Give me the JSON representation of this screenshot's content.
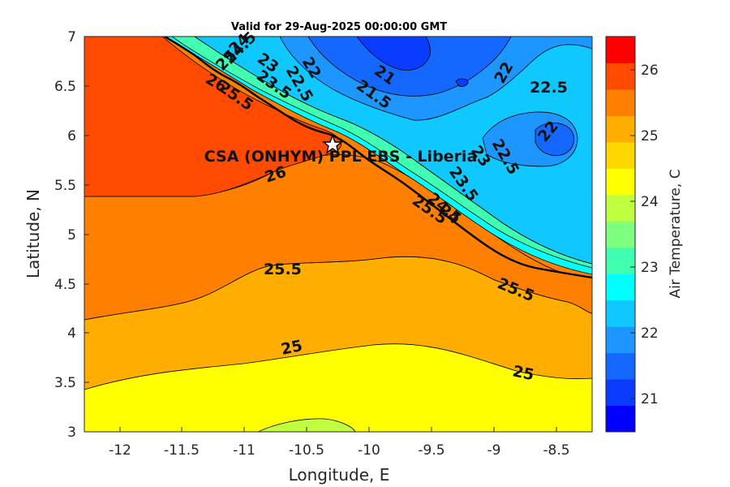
{
  "title": "Valid for 29-Aug-2025 00:00:00 GMT",
  "xlabel": "Longitude, E",
  "ylabel": "Latitude, N",
  "colorbar_label": "Air Temperature, C",
  "site_label": "CSA (ONHYM) PPL EBS  - Liberia",
  "x_ticks": [
    "-12",
    "-11.5",
    "-11",
    "-10.5",
    "-10",
    "-9.5",
    "-9",
    "-8.5"
  ],
  "y_ticks": [
    "7",
    "6.5",
    "6",
    "5.5",
    "5",
    "4.5",
    "4",
    "3.5",
    "3"
  ],
  "colorbar_ticks": [
    "26",
    "25",
    "24",
    "23",
    "22",
    "21"
  ],
  "colormap": [
    "#0000ff",
    "#0a3cff",
    "#1468ff",
    "#1e96ff",
    "#0fc8ff",
    "#00ffff",
    "#40ffb0",
    "#7dff80",
    "#c0ff40",
    "#ffff00",
    "#ffd700",
    "#ffae00",
    "#ff8000",
    "#ff4a00",
    "#ff0000"
  ],
  "chart_data": {
    "type": "heatmap",
    "subtype": "filled contour map",
    "variable": "Air Temperature, C",
    "xlim": [
      -12.3,
      -8.25
    ],
    "ylim": [
      3,
      7
    ],
    "clim": [
      20.5,
      26.5
    ],
    "contour_levels": [
      21,
      21.5,
      22,
      22.5,
      23,
      23.5,
      24,
      24.5,
      25,
      25.5,
      26
    ],
    "contour_labels": [
      {
        "text": "26",
        "lon": -11.35,
        "lat": 6.55
      },
      {
        "text": "26",
        "lon": -10.75,
        "lat": 5.6
      },
      {
        "text": "25.5",
        "lon": -10.68,
        "lat": 4.68
      },
      {
        "text": "25.5",
        "lon": -8.97,
        "lat": 4.5
      },
      {
        "text": "25",
        "lon": -10.35,
        "lat": 3.88
      },
      {
        "text": "25",
        "lon": -8.73,
        "lat": 3.62
      },
      {
        "text": "25.5",
        "lon": -11.1,
        "lat": 6.45
      },
      {
        "text": "25.5",
        "lon": -9.55,
        "lat": 5.2
      },
      {
        "text": "25",
        "lon": -11.15,
        "lat": 6.55
      },
      {
        "text": "24.5",
        "lon": -11.0,
        "lat": 6.65
      },
      {
        "text": "24.5",
        "lon": -9.4,
        "lat": 5.38
      },
      {
        "text": "24",
        "lon": -11.0,
        "lat": 6.72
      },
      {
        "text": "24",
        "lon": -9.35,
        "lat": 5.3
      },
      {
        "text": "23.5",
        "lon": -10.8,
        "lat": 6.58
      },
      {
        "text": "23.5",
        "lon": -9.25,
        "lat": 5.6
      },
      {
        "text": "23",
        "lon": -10.95,
        "lat": 6.75
      },
      {
        "text": "23",
        "lon": -9.25,
        "lat": 5.75
      },
      {
        "text": "22.5",
        "lon": -10.6,
        "lat": 6.7
      },
      {
        "text": "22.5",
        "lon": -9.05,
        "lat": 5.85
      },
      {
        "text": "22.5",
        "lon": -8.6,
        "lat": 6.5
      },
      {
        "text": "22",
        "lon": -10.45,
        "lat": 6.78
      },
      {
        "text": "22",
        "lon": -8.87,
        "lat": 6.6
      },
      {
        "text": "22",
        "lon": -8.62,
        "lat": 6.05
      },
      {
        "text": "21.5",
        "lon": -9.95,
        "lat": 6.42
      },
      {
        "text": "21",
        "lon": -9.9,
        "lat": 6.62
      }
    ],
    "site_marker": {
      "lon": -10.3,
      "lat": 5.92
    }
  }
}
